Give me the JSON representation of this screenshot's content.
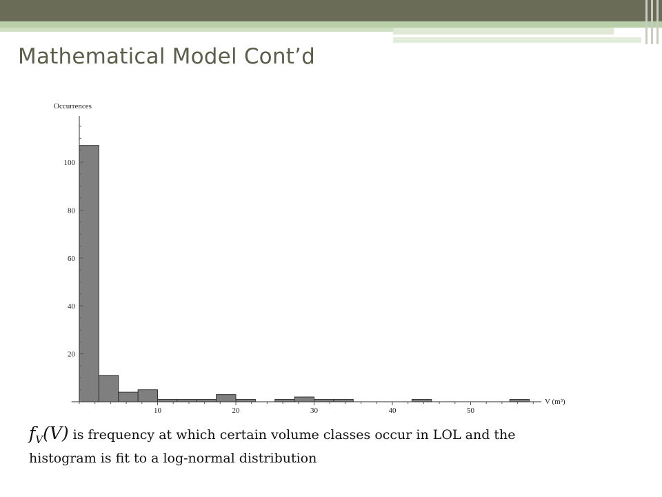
{
  "slide": {
    "title": "Mathematical Model Cont’d",
    "caption_formula": "f_V(V)",
    "caption_formula_f": "f",
    "caption_formula_sub": "V",
    "caption_formula_arg": "(V)",
    "caption_text": "is frequency at which certain volume classes occur in LOL and the histogram is fit to a log-normal distribution",
    "colors": {
      "header": "#6a6c57",
      "accent_band": "#b9cfaa",
      "title": "#5a5f4a",
      "bar_fill": "#7f7f7f"
    }
  },
  "chart_data": {
    "type": "bar",
    "title": "",
    "ylabel": "Occurrences",
    "xlabel": "V (m³)",
    "xlim": [
      -1,
      60
    ],
    "ylim": [
      0,
      118
    ],
    "x_ticks": [
      10,
      20,
      30,
      40,
      50
    ],
    "y_ticks": [
      20,
      40,
      60,
      80,
      100
    ],
    "bin_width": 2.5,
    "bins": [
      {
        "start": 0,
        "value": 107
      },
      {
        "start": 2.5,
        "value": 11
      },
      {
        "start": 5,
        "value": 4
      },
      {
        "start": 7.5,
        "value": 5
      },
      {
        "start": 10,
        "value": 1
      },
      {
        "start": 12.5,
        "value": 1
      },
      {
        "start": 15,
        "value": 1
      },
      {
        "start": 17.5,
        "value": 3
      },
      {
        "start": 20,
        "value": 1
      },
      {
        "start": 25,
        "value": 1
      },
      {
        "start": 27.5,
        "value": 2
      },
      {
        "start": 30,
        "value": 1
      },
      {
        "start": 32.5,
        "value": 1
      },
      {
        "start": 42.5,
        "value": 1
      },
      {
        "start": 55,
        "value": 1
      }
    ],
    "grid": false,
    "legend": "none"
  }
}
